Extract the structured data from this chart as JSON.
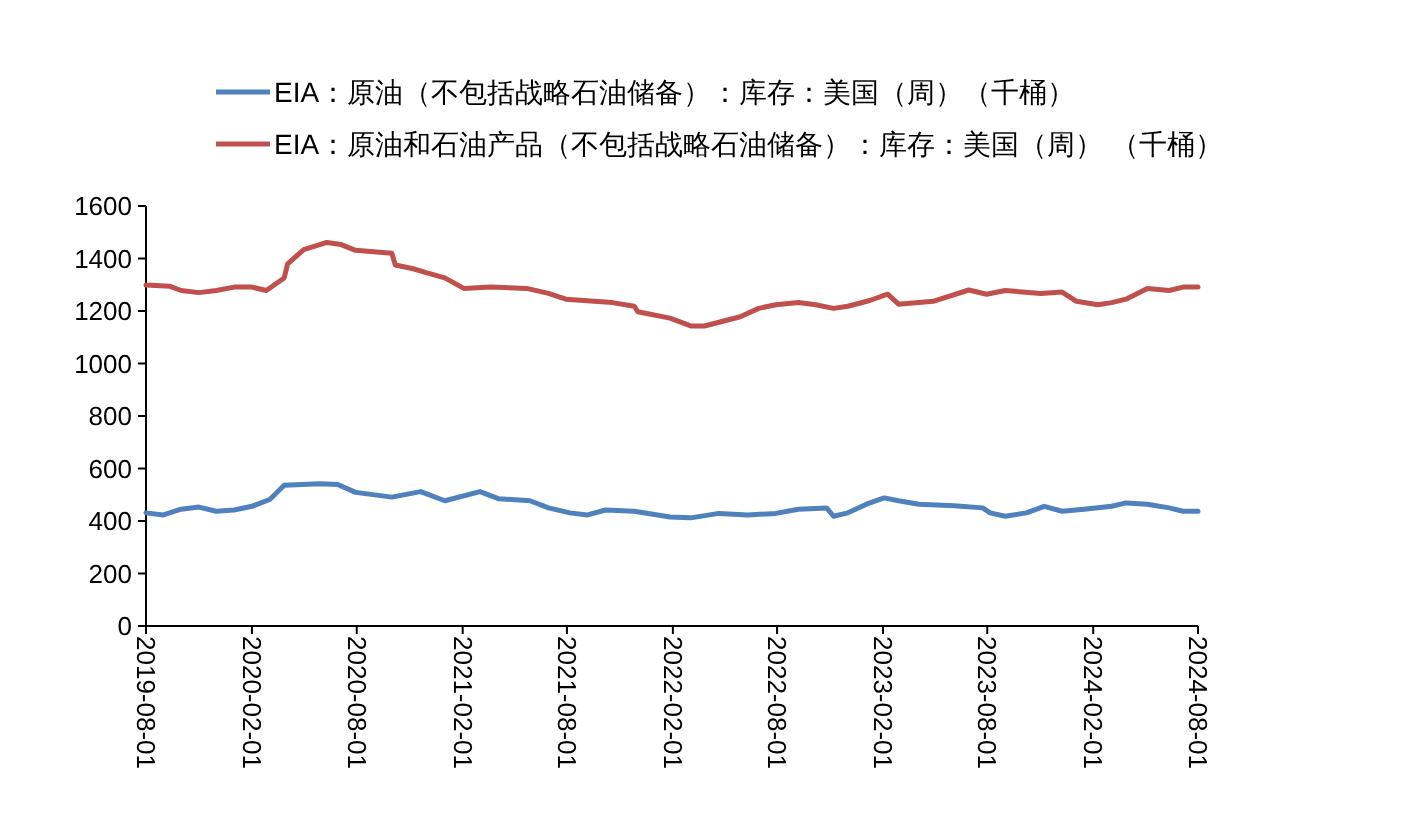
{
  "chart_data": {
    "type": "line",
    "legend": "top",
    "marker": "none",
    "line_style": "solid",
    "grid": false,
    "xlim": [
      "2019-08-01",
      "2024-08-01"
    ],
    "xticks": [
      "2019-08-01",
      "2020-02-01",
      "2020-08-01",
      "2021-02-01",
      "2021-08-01",
      "2022-02-01",
      "2022-08-01",
      "2023-02-01",
      "2023-08-01",
      "2024-02-01",
      "2024-08-01"
    ],
    "ylim": [
      0,
      1600
    ],
    "yticks": [
      0,
      200,
      400,
      600,
      800,
      1000,
      1200,
      1400,
      1600
    ],
    "series": [
      {
        "name": "EIA：原油（不包括战略石油储备）：库存：美国（周）（千桶）",
        "color": "#4f81bd",
        "x": [
          "2019-08-01",
          "2019-08-31",
          "2019-10-01",
          "2019-11-01",
          "2019-12-01",
          "2020-01-01",
          "2020-02-01",
          "2020-03-03",
          "2020-03-28",
          "2020-05-29",
          "2020-06-29",
          "2020-07-30",
          "2020-10-01",
          "2020-11-20",
          "2021-01-01",
          "2021-03-03",
          "2021-04-04",
          "2021-05-29",
          "2021-06-30",
          "2021-08-06",
          "2021-09-06",
          "2021-10-07",
          "2021-11-26",
          "2022-01-27",
          "2022-03-04",
          "2022-04-22",
          "2022-06-11",
          "2022-07-30",
          "2022-09-07",
          "2022-10-26",
          "2022-11-07",
          "2022-12-02",
          "2023-01-03",
          "2023-02-03",
          "2023-02-28",
          "2023-04-04",
          "2023-06-05",
          "2023-07-24",
          "2023-08-06",
          "2023-09-01",
          "2023-10-08",
          "2023-11-08",
          "2023-12-09",
          "2024-01-16",
          "2024-03-04",
          "2024-03-29",
          "2024-05-05",
          "2024-06-12",
          "2024-07-06",
          "2024-08-01"
        ],
        "values": [
          431,
          423,
          445,
          453,
          437,
          442,
          456,
          482,
          536,
          542,
          539,
          509,
          491,
          512,
          477,
          512,
          485,
          477,
          450,
          431,
          423,
          442,
          437,
          415,
          412,
          429,
          423,
          429,
          445,
          450,
          418,
          431,
          464,
          488,
          477,
          464,
          458,
          450,
          431,
          418,
          431,
          456,
          437,
          445,
          456,
          469,
          464,
          450,
          437,
          437
        ]
      },
      {
        "name": "EIA：原油和石油产品（不包括战略石油储备）：库存：美国（周） （千桶）",
        "color": "#c0504d",
        "x": [
          "2019-08-01",
          "2019-09-12",
          "2019-10-01",
          "2019-11-01",
          "2019-12-01",
          "2020-01-01",
          "2020-02-01",
          "2020-02-26",
          "2020-03-28",
          "2020-04-03",
          "2020-05-01",
          "2020-06-10",
          "2020-07-05",
          "2020-07-30",
          "2020-10-01",
          "2020-10-07",
          "2020-11-07",
          "2020-12-01",
          "2021-01-01",
          "2021-02-03",
          "2021-03-22",
          "2021-05-23",
          "2021-06-30",
          "2021-07-30",
          "2021-10-19",
          "2021-11-26",
          "2021-12-02",
          "2022-01-27",
          "2022-03-04",
          "2022-03-28",
          "2022-05-29",
          "2022-06-30",
          "2022-07-30",
          "2022-09-07",
          "2022-10-07",
          "2022-11-07",
          "2022-12-02",
          "2023-01-09",
          "2023-02-09",
          "2023-02-28",
          "2023-04-29",
          "2023-06-30",
          "2023-07-31",
          "2023-09-01",
          "2023-11-02",
          "2023-12-09",
          "2024-01-03",
          "2024-02-09",
          "2024-03-04",
          "2024-03-29",
          "2024-05-05",
          "2024-06-12",
          "2024-07-06",
          "2024-08-01"
        ],
        "values": [
          1299,
          1294,
          1278,
          1270,
          1278,
          1291,
          1291,
          1278,
          1326,
          1380,
          1434,
          1461,
          1453,
          1431,
          1420,
          1375,
          1361,
          1345,
          1326,
          1286,
          1291,
          1286,
          1267,
          1245,
          1232,
          1218,
          1197,
          1173,
          1143,
          1143,
          1178,
          1210,
          1224,
          1232,
          1224,
          1210,
          1218,
          1240,
          1264,
          1226,
          1237,
          1280,
          1264,
          1278,
          1267,
          1272,
          1237,
          1224,
          1232,
          1245,
          1286,
          1278,
          1291,
          1291
        ]
      }
    ]
  }
}
